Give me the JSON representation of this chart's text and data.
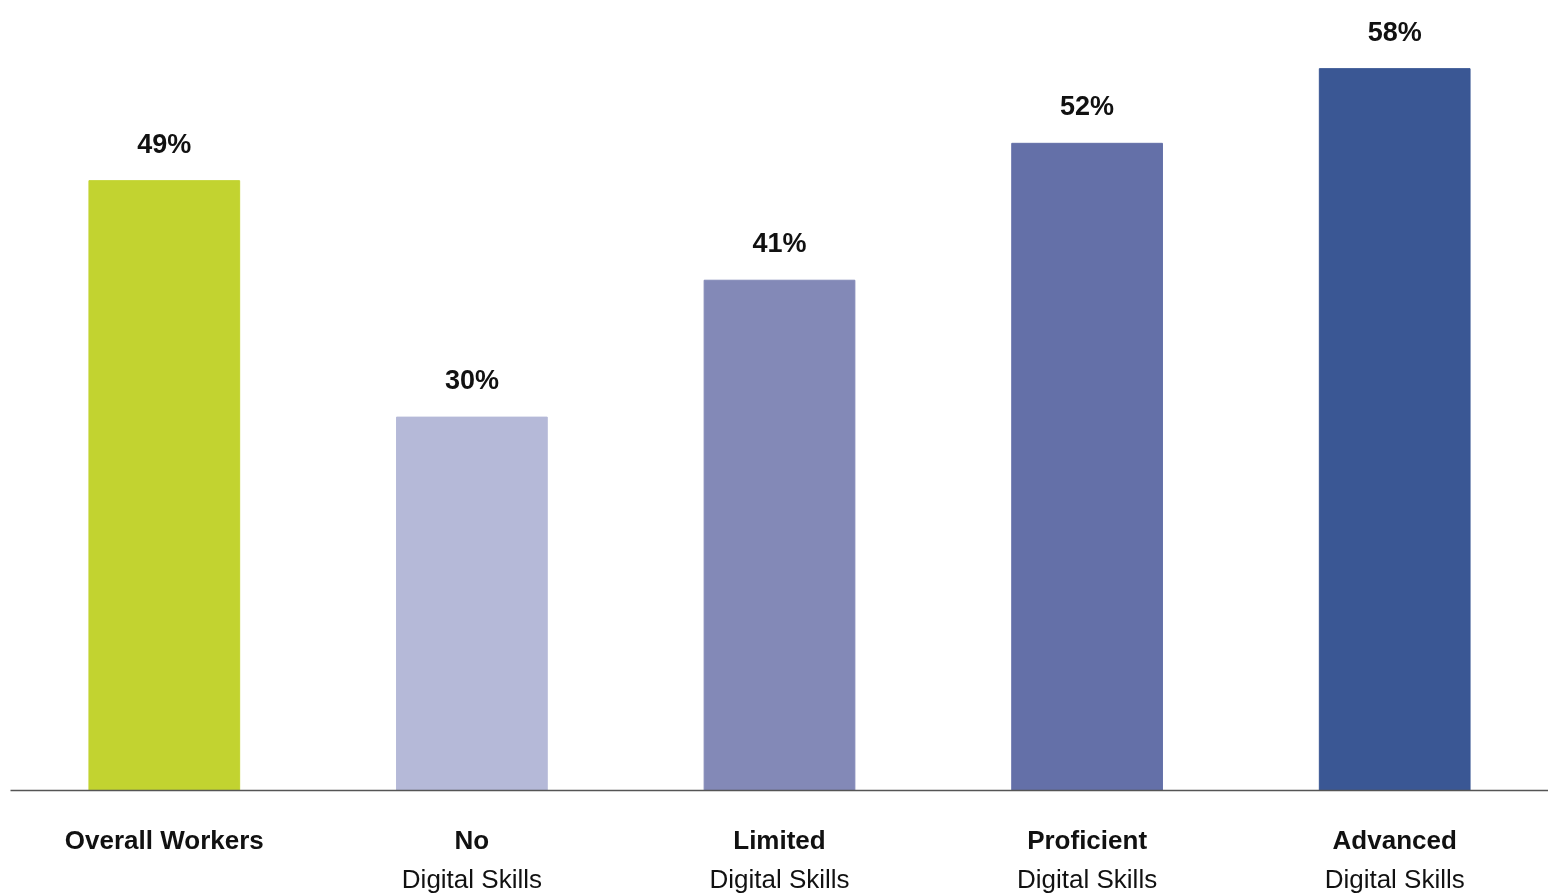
{
  "chart_data": {
    "type": "bar",
    "categories": [
      "Overall Workers",
      "No\nDigital Skills",
      "Limited\nDigital Skills",
      "Proficient\nDigital Skills",
      "Advanced\nDigital Skills"
    ],
    "values": [
      49,
      30,
      41,
      52,
      58
    ],
    "colors": [
      "#c2d330",
      "#b5b9d8",
      "#8389b7",
      "#6470a8",
      "#3a5794"
    ],
    "data_labels": true,
    "value_labels": [
      "49%",
      "30%",
      "41%",
      "52%",
      "58%"
    ]
  }
}
